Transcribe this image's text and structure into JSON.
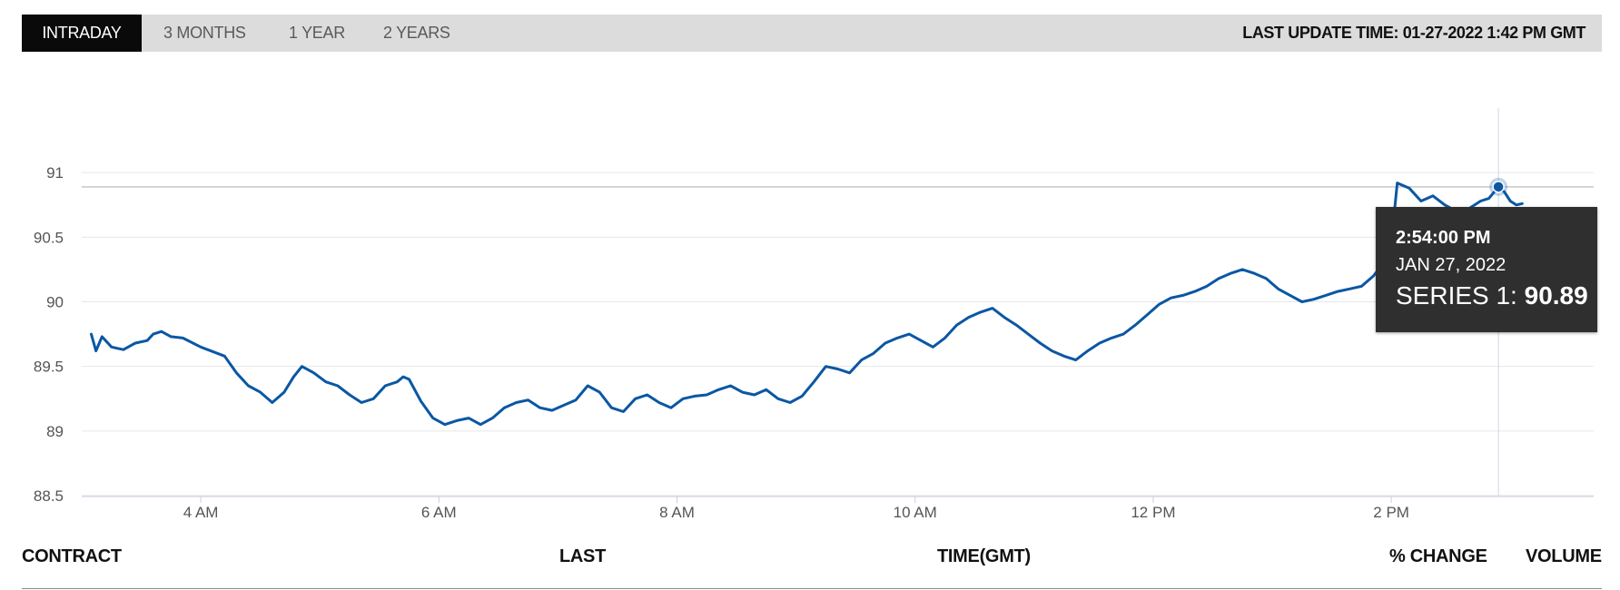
{
  "tabs": [
    {
      "label": "INTRADAY",
      "active": true
    },
    {
      "label": "3 MONTHS",
      "active": false
    },
    {
      "label": "1 YEAR",
      "active": false
    },
    {
      "label": "2 YEARS",
      "active": false
    }
  ],
  "last_update": "LAST UPDATE TIME: 01-27-2022 1:42 PM GMT",
  "tooltip": {
    "time": "2:54:00 PM",
    "date": "JAN 27, 2022",
    "series_label": "SERIES 1:",
    "series_value": "90.89"
  },
  "table_headers": [
    "CONTRACT",
    "LAST",
    "TIME(GMT)",
    "% CHANGE",
    "VOLUME"
  ],
  "colors": {
    "line": "#0a57a3",
    "grid": "#e6e6e6",
    "reference_line": "#c8c8c8",
    "tooltip_bg": "#2f2f2f",
    "active_tab_bg": "#0a0a0a",
    "tabbar_bg": "#dcdcdc"
  },
  "chart_data": {
    "type": "line",
    "x_tick_labels": [
      "4 AM",
      "6 AM",
      "8 AM",
      "10 AM",
      "12 PM",
      "2 PM"
    ],
    "x_tick_hours": [
      4,
      6,
      8,
      10,
      12,
      14
    ],
    "xlim": [
      3.0,
      15.7
    ],
    "ylim": [
      88.5,
      91.5
    ],
    "y_ticks": [
      88.5,
      89,
      89.5,
      90,
      90.5,
      91
    ],
    "y_tick_labels": [
      "88.5",
      "89",
      "89.5",
      "90",
      "90.5",
      "91"
    ],
    "reference_value": 90.89,
    "grid": true,
    "highlight": {
      "x": 14.9,
      "y": 90.89
    },
    "series": [
      {
        "x": [
          3.08,
          3.12,
          3.17,
          3.25,
          3.35,
          3.45,
          3.55,
          3.6,
          3.67,
          3.75,
          3.85,
          4.0,
          4.2,
          4.3,
          4.4,
          4.5,
          4.6,
          4.7,
          4.78,
          4.85,
          4.95,
          5.05,
          5.15,
          5.25,
          5.35,
          5.45,
          5.55,
          5.65,
          5.7,
          5.75,
          5.85,
          5.95,
          6.05,
          6.15,
          6.25,
          6.35,
          6.45,
          6.55,
          6.65,
          6.75,
          6.85,
          6.95,
          7.05,
          7.15,
          7.25,
          7.35,
          7.45,
          7.55,
          7.65,
          7.75,
          7.85,
          7.95,
          8.05,
          8.15,
          8.25,
          8.35,
          8.45,
          8.55,
          8.65,
          8.75,
          8.85,
          8.95,
          9.05,
          9.15,
          9.25,
          9.35,
          9.45,
          9.55,
          9.65,
          9.75,
          9.85,
          9.95,
          10.05,
          10.15,
          10.25,
          10.35,
          10.45,
          10.55,
          10.65,
          10.75,
          10.85,
          10.95,
          11.05,
          11.15,
          11.25,
          11.35,
          11.45,
          11.55,
          11.65,
          11.75,
          11.85,
          11.95,
          12.05,
          12.15,
          12.25,
          12.35,
          12.45,
          12.55,
          12.65,
          12.75,
          12.85,
          12.95,
          13.05,
          13.15,
          13.25,
          13.35,
          13.45,
          13.55,
          13.65,
          13.75,
          13.85,
          13.95,
          14.0,
          14.05,
          14.15,
          14.25,
          14.35,
          14.45,
          14.55,
          14.65,
          14.75,
          14.82,
          14.9,
          14.95,
          15.0,
          15.05,
          15.1
        ],
        "y": [
          89.75,
          89.62,
          89.73,
          89.65,
          89.63,
          89.68,
          89.7,
          89.75,
          89.77,
          89.73,
          89.72,
          89.65,
          89.58,
          89.45,
          89.35,
          89.3,
          89.22,
          89.3,
          89.42,
          89.5,
          89.45,
          89.38,
          89.35,
          89.28,
          89.22,
          89.25,
          89.35,
          89.38,
          89.42,
          89.4,
          89.23,
          89.1,
          89.05,
          89.08,
          89.1,
          89.05,
          89.1,
          89.18,
          89.22,
          89.24,
          89.18,
          89.16,
          89.2,
          89.24,
          89.35,
          89.3,
          89.18,
          89.15,
          89.25,
          89.28,
          89.22,
          89.18,
          89.25,
          89.27,
          89.28,
          89.32,
          89.35,
          89.3,
          89.28,
          89.32,
          89.25,
          89.22,
          89.27,
          89.38,
          89.5,
          89.48,
          89.45,
          89.55,
          89.6,
          89.68,
          89.72,
          89.75,
          89.7,
          89.65,
          89.72,
          89.82,
          89.88,
          89.92,
          89.95,
          89.88,
          89.82,
          89.75,
          89.68,
          89.62,
          89.58,
          89.55,
          89.62,
          89.68,
          89.72,
          89.75,
          89.82,
          89.9,
          89.98,
          90.03,
          90.05,
          90.08,
          90.12,
          90.18,
          90.22,
          90.25,
          90.22,
          90.18,
          90.1,
          90.05,
          90.0,
          90.02,
          90.05,
          90.08,
          90.1,
          90.12,
          90.2,
          90.32,
          90.45,
          90.92,
          90.88,
          90.78,
          90.82,
          90.75,
          90.7,
          90.72,
          90.78,
          90.8,
          90.89,
          90.85,
          90.78,
          90.75,
          90.76
        ]
      }
    ]
  }
}
